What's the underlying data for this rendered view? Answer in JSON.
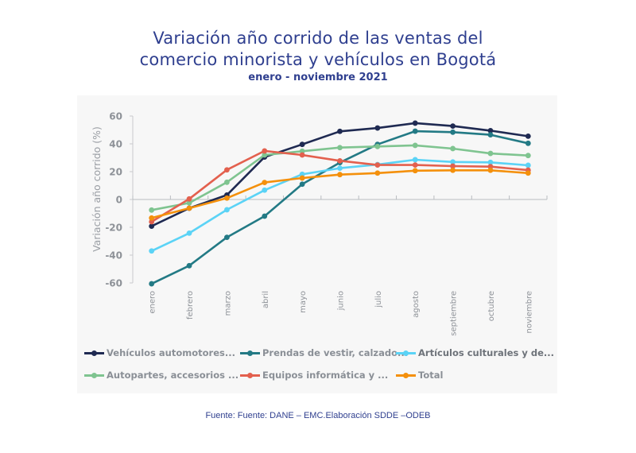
{
  "header": {
    "title_line1": "Variación año corrido de las ventas del",
    "title_line2": "comercio minorista y vehículos en Bogotá",
    "subtitle": "enero - noviembre 2021"
  },
  "footer": {
    "source": "Fuente: Fuente: DANE – EMC.Elaboración SDDE –ODEB"
  },
  "chart_data": {
    "type": "line",
    "title": "Variación año corrido de las ventas del comercio minorista y vehículos en Bogotá",
    "subtitle": "enero - noviembre 2021",
    "xlabel": "",
    "ylabel": "Variación año corrido (%)",
    "ylim": [
      -60,
      60
    ],
    "yticks": [
      60,
      40,
      20,
      0,
      -20,
      -40,
      -60
    ],
    "grid": false,
    "legend_position": "bottom",
    "categories": [
      "enero",
      "febrero",
      "marzo",
      "abril",
      "mayo",
      "junio",
      "julio",
      "agosto",
      "septiembre",
      "octubre",
      "noviembre"
    ],
    "series": [
      {
        "name": "Vehículos automotores...",
        "color": "#1f2a52",
        "values": [
          -19.2,
          -6.3,
          3.2,
          30.5,
          39.6,
          49.0,
          51.4,
          54.9,
          52.8,
          49.5,
          45.5
        ]
      },
      {
        "name": "Prendas de vestir, calzado...",
        "color": "#237a85",
        "values": [
          -60.6,
          -47.6,
          -27.2,
          -12.0,
          11.0,
          26.5,
          39.6,
          49.1,
          48.4,
          46.5,
          40.4
        ]
      },
      {
        "name": "Artículos culturales y de...",
        "color": "#5bd3f6",
        "values": [
          -37.0,
          -24.2,
          -7.4,
          6.7,
          18.1,
          22.5,
          25.1,
          28.6,
          27.0,
          26.7,
          24.6
        ]
      },
      {
        "name": "Autopartes, accesorios ...",
        "color": "#7fc490",
        "values": [
          -7.6,
          -2.5,
          12.4,
          32.0,
          34.7,
          37.3,
          38.1,
          38.9,
          36.6,
          33.1,
          31.6
        ]
      },
      {
        "name": "Equipos informática y ...",
        "color": "#e3604e",
        "values": [
          -16.0,
          0.4,
          21.3,
          34.9,
          32.0,
          27.8,
          24.8,
          24.8,
          24.0,
          23.6,
          21.1
        ]
      },
      {
        "name": "Total",
        "color": "#f4900c",
        "values": [
          -13.3,
          -6.3,
          1.0,
          12.2,
          15.4,
          17.9,
          19.0,
          20.7,
          21.0,
          21.0,
          19.0
        ]
      }
    ]
  }
}
